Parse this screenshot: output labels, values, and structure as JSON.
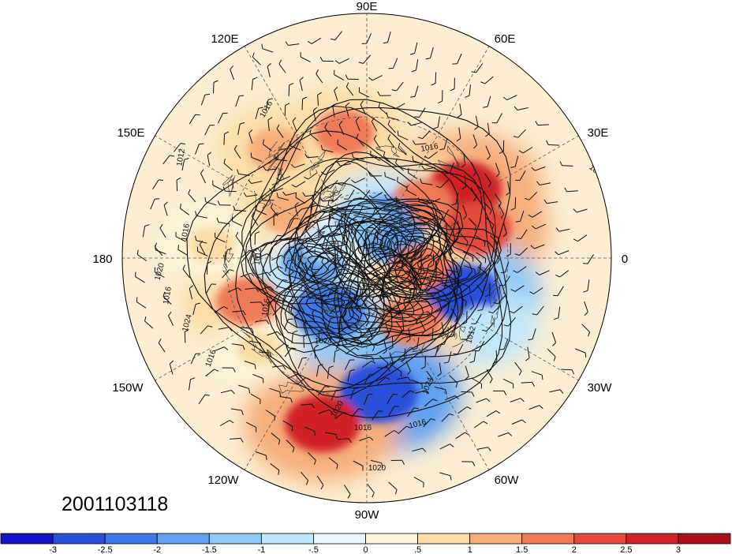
{
  "title_stamp": "2001103118",
  "longitude_labels": [
    {
      "text": "90E"
    },
    {
      "text": "60E"
    },
    {
      "text": "30E"
    },
    {
      "text": "0"
    },
    {
      "text": "30W"
    },
    {
      "text": "60W"
    },
    {
      "text": "90W"
    },
    {
      "text": "120W"
    },
    {
      "text": "150W"
    },
    {
      "text": "180"
    },
    {
      "text": "150E"
    },
    {
      "text": "120E"
    }
  ],
  "contour_labels": [
    "1016",
    "1012",
    "1016",
    "1020",
    "1016",
    "1024",
    "1016",
    "1012",
    "1016",
    "1024",
    "1020",
    "1016",
    "1016",
    "1020",
    "1016",
    "1012",
    "1024",
    "1016"
  ],
  "colorbar": {
    "colors": [
      "#1515c8",
      "#2a4fdb",
      "#3f78e6",
      "#60a0ee",
      "#8fc8f5",
      "#bfe6fa",
      "#e9f6fb",
      "#fcf4d8",
      "#fbdca6",
      "#f6ad7a",
      "#ef7a58",
      "#e34a3c",
      "#d02328",
      "#a8101c"
    ],
    "ticks": [
      "-3",
      "-2.5",
      "-2",
      "-1.5",
      "-1",
      "-.5",
      "0",
      ".5",
      "1",
      "1.5",
      "2",
      "2.5",
      "3"
    ]
  },
  "anomaly_regions": [
    {
      "lon": 100,
      "lat": 35,
      "value": 1.6
    },
    {
      "lon": 130,
      "lat": 30,
      "value": 1.4
    },
    {
      "lon": 35,
      "lat": 38,
      "value": 2.6
    },
    {
      "lon": 15,
      "lat": 40,
      "value": 2.2
    },
    {
      "lon": 45,
      "lat": 55,
      "value": 1.8
    },
    {
      "lon": 40,
      "lat": 75,
      "value": -2.0
    },
    {
      "lon": 70,
      "lat": 70,
      "value": -1.6
    },
    {
      "lon": 100,
      "lat": 72,
      "value": -1.2
    },
    {
      "lon": -20,
      "lat": 45,
      "value": -2.6
    },
    {
      "lon": -30,
      "lat": 32,
      "value": -1.0
    },
    {
      "lon": -55,
      "lat": 55,
      "value": 1.8
    },
    {
      "lon": -85,
      "lat": 32,
      "value": -2.8
    },
    {
      "lon": -105,
      "lat": 20,
      "value": 2.6
    },
    {
      "lon": -125,
      "lat": 60,
      "value": -2.4
    },
    {
      "lon": -160,
      "lat": 35,
      "value": 1.8
    },
    {
      "lon": -175,
      "lat": 65,
      "value": -1.8
    },
    {
      "lon": 150,
      "lat": 50,
      "value": 1.4
    },
    {
      "lon": -10,
      "lat": 65,
      "value": 1.6
    },
    {
      "lon": 160,
      "lat": 70,
      "value": -0.8
    },
    {
      "lon": -140,
      "lat": 30,
      "value": 0.6
    },
    {
      "lon": 175,
      "lat": 25,
      "value": 0.8
    }
  ],
  "pressure_centers": [
    {
      "lon": 70,
      "lat": 82
    },
    {
      "lon": 15,
      "lat": 73
    },
    {
      "lon": -175,
      "lat": 67
    },
    {
      "lon": -125,
      "lat": 64
    },
    {
      "lon": -60,
      "lat": 67
    },
    {
      "lon": -5,
      "lat": 62
    }
  ]
}
